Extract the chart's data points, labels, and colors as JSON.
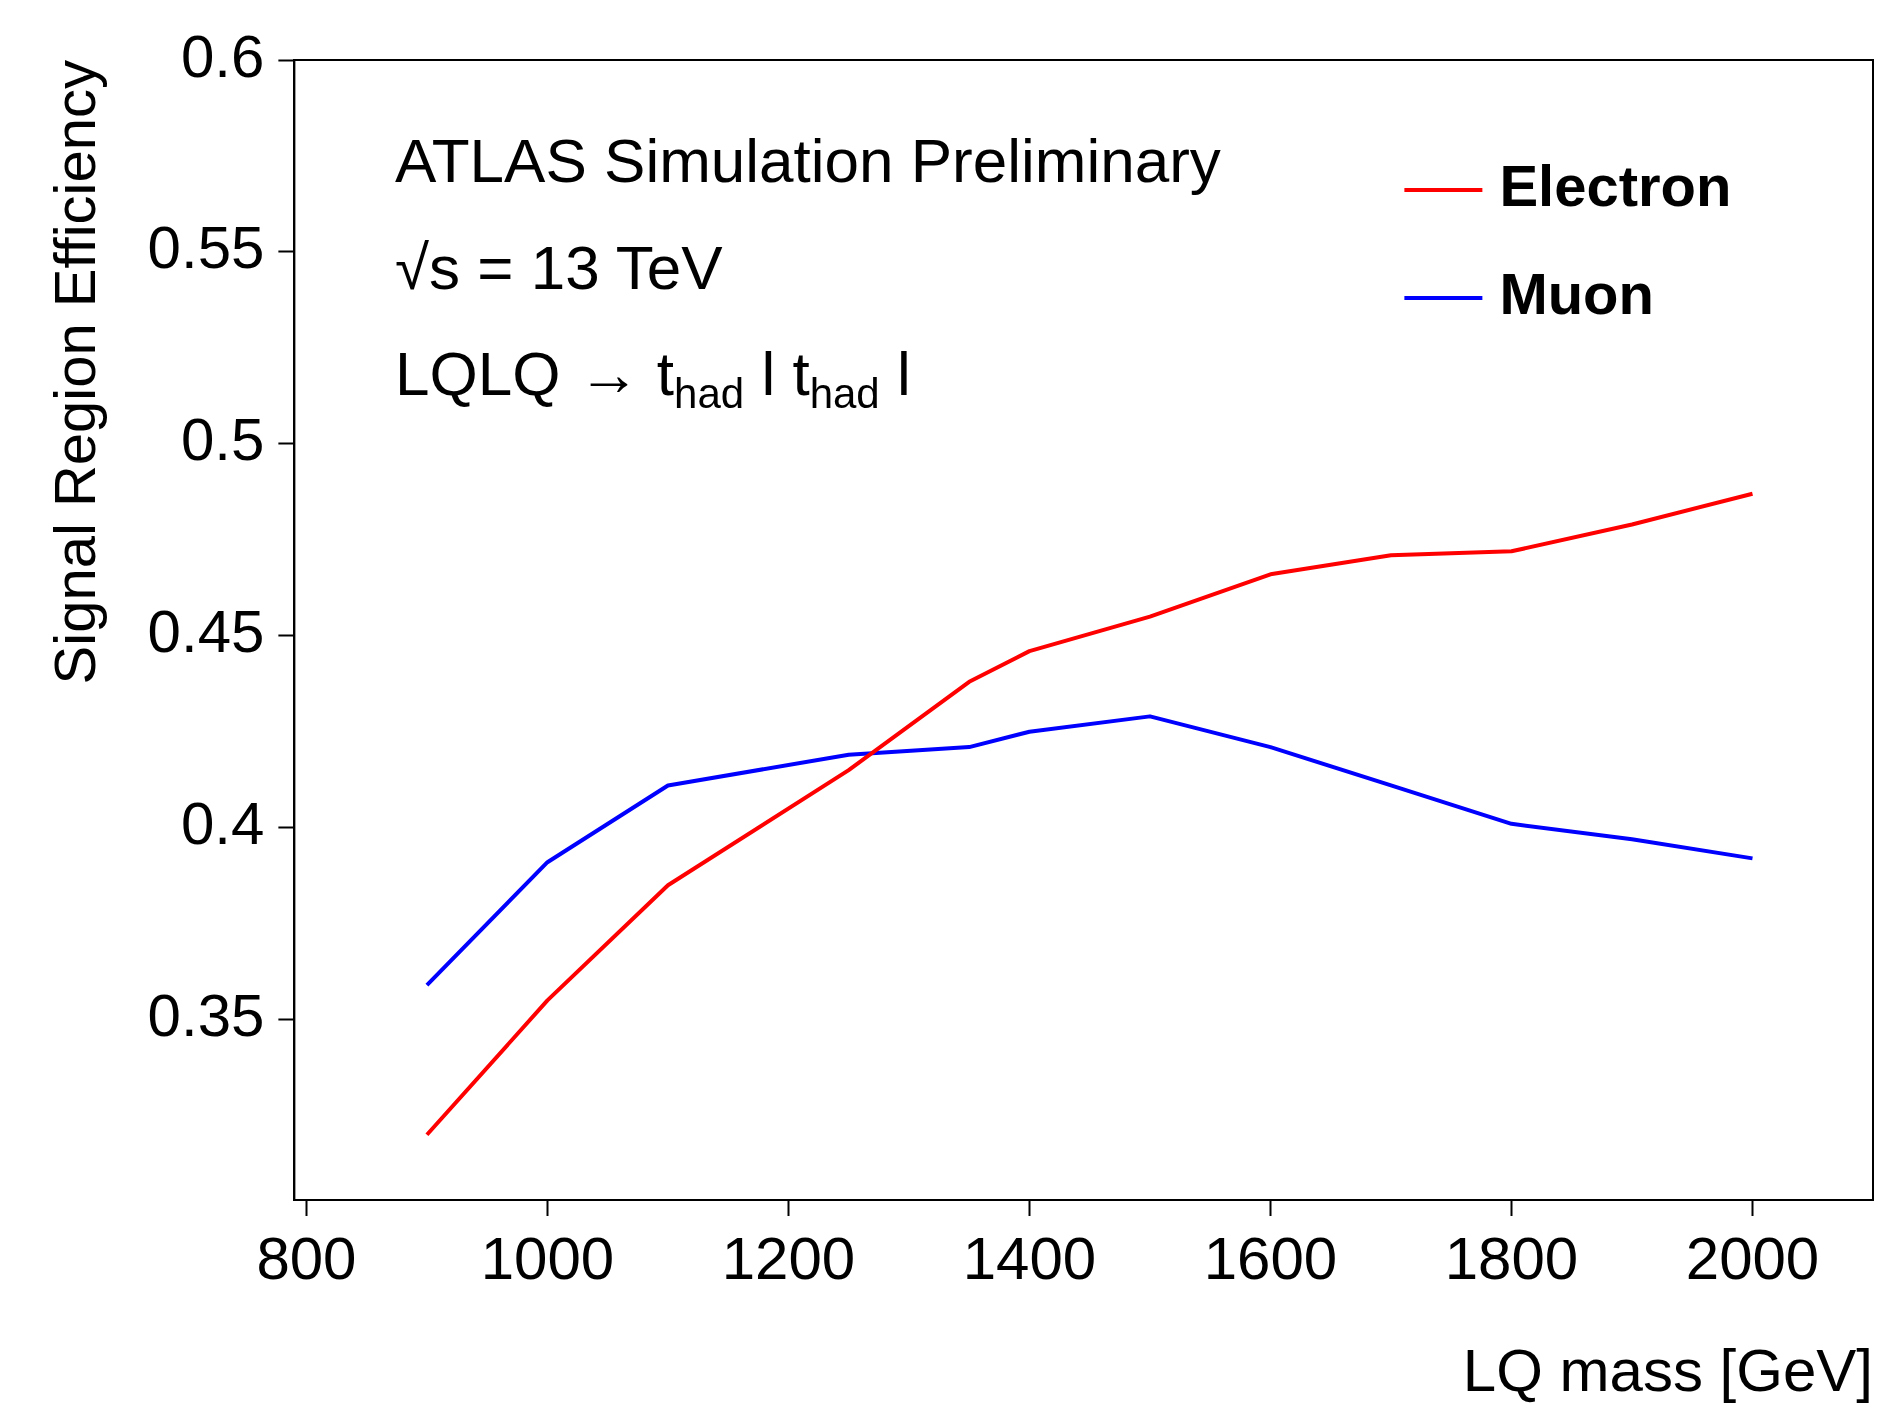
{
  "chart_data": {
    "type": "line",
    "xlabel": "LQ mass [GeV]",
    "ylabel": "Signal Region Efficiency",
    "annotations": [
      "ATLAS Simulation Preliminary",
      "√s = 13 TeV",
      "LQLQ → t$_{had}$ l t$_{had}$ l"
    ],
    "x": [
      900,
      1000,
      1100,
      1250,
      1350,
      1400,
      1500,
      1600,
      1700,
      1800,
      1900,
      2000
    ],
    "series": [
      {
        "name": "Electron",
        "color": "#ff0000",
        "values": [
          0.32,
          0.355,
          0.385,
          0.415,
          0.438,
          0.446,
          0.455,
          0.466,
          0.471,
          0.472,
          0.479,
          0.487
        ]
      },
      {
        "name": "Muon",
        "color": "#0000ff",
        "values": [
          0.359,
          0.391,
          0.411,
          0.419,
          0.421,
          0.425,
          0.429,
          0.421,
          0.411,
          0.401,
          0.397,
          0.392
        ]
      }
    ],
    "xlim": [
      790,
      2100
    ],
    "ylim": [
      0.303,
      0.6
    ],
    "xticks": [
      800,
      1000,
      1200,
      1400,
      1600,
      1800,
      2000
    ],
    "yticks": [
      0.35,
      0.4,
      0.45,
      0.5,
      0.55,
      0.6
    ],
    "legend": "top right",
    "grid": false,
    "marker": "none",
    "line_style": "solid"
  }
}
